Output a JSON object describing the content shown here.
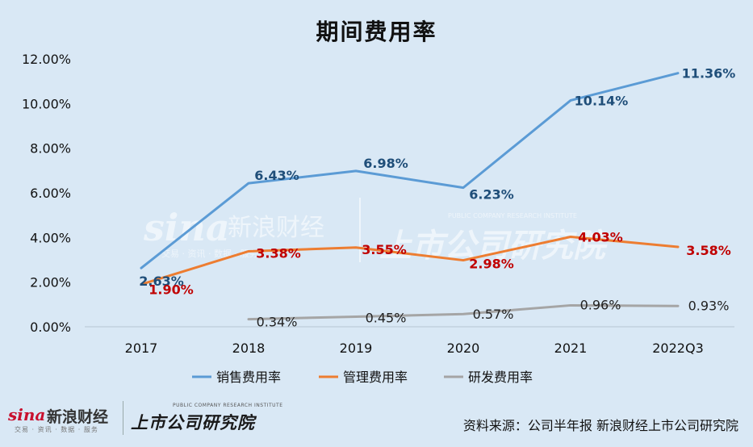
{
  "chart_data": {
    "type": "line",
    "title": "期间费用率",
    "categories": [
      "2017",
      "2018",
      "2019",
      "2020",
      "2021",
      "2022Q3"
    ],
    "ylim": [
      0,
      12
    ],
    "y_ticks": [
      "0.00%",
      "2.00%",
      "4.00%",
      "6.00%",
      "8.00%",
      "10.00%",
      "12.00%"
    ],
    "grid": false,
    "legend_position": "bottom",
    "series": [
      {
        "name": "销售费用率",
        "color": "#5b9bd5",
        "label_color": "#1f4e79",
        "values": [
          2.63,
          6.43,
          6.98,
          6.23,
          10.14,
          11.36
        ],
        "labels": [
          "2.63%",
          "6.43%",
          "6.98%",
          "6.23%",
          "10.14%",
          "11.36%"
        ]
      },
      {
        "name": "管理费用率",
        "color": "#ed7d31",
        "label_color": "#c00000",
        "values": [
          1.9,
          3.38,
          3.55,
          2.98,
          4.03,
          3.58
        ],
        "labels": [
          "1.90%",
          "3.38%",
          "3.55%",
          "2.98%",
          "4.03%",
          "3.58%"
        ]
      },
      {
        "name": "研发费用率",
        "color": "#a5a5a5",
        "label_color": "#222222",
        "values": [
          null,
          0.34,
          0.45,
          0.57,
          0.96,
          0.93
        ],
        "labels": [
          null,
          "0.34%",
          "0.45%",
          "0.57%",
          "0.96%",
          "0.93%"
        ]
      }
    ]
  },
  "watermark": {
    "brand_latin": "sina",
    "brand_cn": "新浪财经",
    "brand_sub": "交易 · 资讯 · 数据 · 服务",
    "research_en": "PUBLIC COMPANY RESEARCH INSTITUTE",
    "research_cn": "上市公司研究院"
  },
  "footer": {
    "brand_latin": "sina",
    "brand_cn": "新浪财经",
    "brand_sub": "交易 · 资讯 · 数据 · 服务",
    "research_en": "PUBLIC COMPANY RESEARCH INSTITUTE",
    "research_cn": "上市公司研究院",
    "source": "资料来源：公司半年报 新浪财经上市公司研究院"
  }
}
